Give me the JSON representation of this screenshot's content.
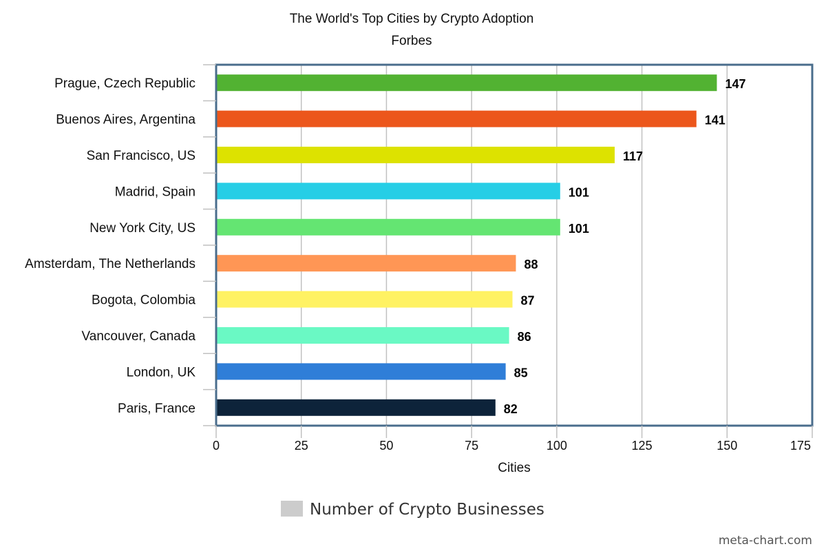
{
  "chart_data": {
    "type": "bar",
    "orientation": "horizontal",
    "title": "The World's Top Cities by Crypto Adoption",
    "subtitle": "Forbes",
    "xlabel": "Cities",
    "ylabel": "",
    "xlim": [
      0,
      175
    ],
    "x_ticks": [
      0,
      25,
      50,
      75,
      100,
      125,
      150,
      175
    ],
    "grid": true,
    "legend_position": "bottom",
    "categories": [
      "Prague, Czech Republic",
      "Buenos Aires, Argentina",
      "San Francisco, US",
      "Madrid, Spain",
      "New York City, US",
      "Amsterdam, The Netherlands",
      "Bogota, Colombia",
      "Vancouver, Canada",
      "London, UK",
      "Paris, France"
    ],
    "series": [
      {
        "name": "Number of Crypto Businesses",
        "values": [
          147,
          141,
          117,
          101,
          101,
          88,
          87,
          86,
          85,
          82
        ]
      }
    ],
    "bar_colors": [
      "#52b232",
      "#ec561b",
      "#dde200",
      "#26cee6",
      "#64e572",
      "#ff9655",
      "#fff263",
      "#6af9c4",
      "#2f7ed8",
      "#0d233a"
    ],
    "legend_color": "#cccccc",
    "frame_color": "#4a6d8c",
    "grid_color": "#c0c0c0"
  },
  "footer": {
    "credit": "meta-chart.com"
  }
}
